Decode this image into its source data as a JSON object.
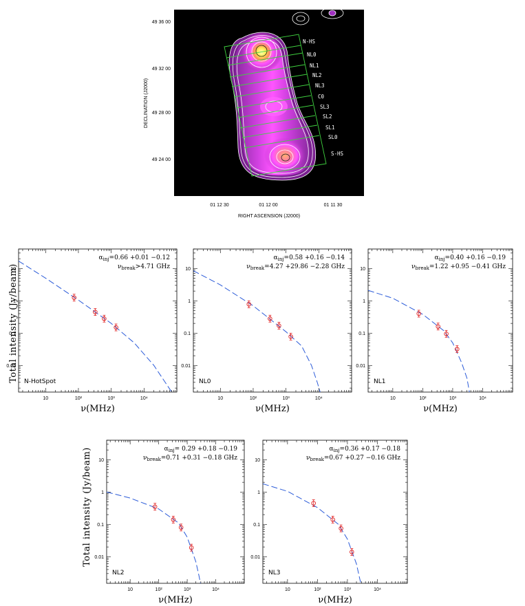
{
  "radio_map": {
    "ra_axis_label": "RIGHT ASCENSION  (J2000)",
    "dec_axis_label": "DECLINATION  (J2000)",
    "ra_ticks": [
      "01 12 30",
      "01 12 00",
      "01 11 30"
    ],
    "dec_ticks": [
      "49 36 00",
      "49 32 00",
      "49 28 00",
      "49 24 00"
    ],
    "region_labels": [
      "N-HS",
      "NL0",
      "NL1",
      "NL2",
      "NL3",
      "C0",
      "SL3",
      "SL2",
      "SL1",
      "SL0",
      "S-HS"
    ],
    "colors": {
      "background": "#000000",
      "grid_boxes": "#3fd23f",
      "contours": "#ffffff",
      "emission_peak": "#ffff55",
      "emission_mid": "#ff44ff"
    }
  },
  "shared": {
    "ylabel": "Total intensity (Jy/beam)",
    "xlabel": "ν(MHz)",
    "colors": {
      "model_line": "#2a5ad8",
      "data_points": "#e02020",
      "axes": "#000000"
    }
  },
  "chart_data": [
    {
      "type": "scatter",
      "panel_label": "N-HotSpot",
      "anno_alpha": "α_inj=0.66 +0.01 −0.12",
      "anno_break": "ν_break>4.71 GHz",
      "xscale": "log",
      "yscale": "log",
      "xlim": [
        1.5,
        100000
      ],
      "ylim": [
        0.0015,
        40
      ],
      "xticks": [
        "10",
        "10²",
        "10³",
        "10⁴"
      ],
      "yticks": [
        "0.01",
        "0.1",
        "1",
        "10"
      ],
      "points": [
        {
          "x": 74,
          "y": 1.25
        },
        {
          "x": 325,
          "y": 0.45
        },
        {
          "x": 610,
          "y": 0.28
        },
        {
          "x": 1400,
          "y": 0.15
        }
      ],
      "model": [
        [
          1.5,
          17
        ],
        [
          10,
          5
        ],
        [
          100,
          1.05
        ],
        [
          1000,
          0.2
        ],
        [
          5000,
          0.05
        ],
        [
          20000,
          0.01
        ],
        [
          50000,
          0.0025
        ],
        [
          70000,
          0.0015
        ]
      ]
    },
    {
      "type": "scatter",
      "panel_label": "NL0",
      "anno_alpha": "α_inj=0.58 +0.16 −0.14",
      "anno_break": "ν_break=4.27 +29.86 −2.28 GHz",
      "xscale": "log",
      "yscale": "log",
      "xlim": [
        1.5,
        100000
      ],
      "ylim": [
        0.0015,
        40
      ],
      "xticks": [
        "10",
        "10²",
        "10³",
        "10⁴"
      ],
      "yticks": [
        "0.01",
        "0.1",
        "1",
        "10"
      ],
      "points": [
        {
          "x": 74,
          "y": 0.78
        },
        {
          "x": 325,
          "y": 0.28
        },
        {
          "x": 610,
          "y": 0.17
        },
        {
          "x": 1400,
          "y": 0.078
        }
      ],
      "model": [
        [
          1.5,
          8.5
        ],
        [
          10,
          3.1
        ],
        [
          100,
          0.7
        ],
        [
          1000,
          0.11
        ],
        [
          3000,
          0.04
        ],
        [
          6000,
          0.01
        ],
        [
          9000,
          0.003
        ],
        [
          11000,
          0.0015
        ]
      ]
    },
    {
      "type": "scatter",
      "panel_label": "NL1",
      "anno_alpha": "α_inj=0.40 +0.16 −0.19",
      "anno_break": "ν_break=1.22 +0.95 −0.41 GHz",
      "xscale": "log",
      "yscale": "log",
      "xlim": [
        1.5,
        100000
      ],
      "ylim": [
        0.0015,
        40
      ],
      "xticks": [
        "10",
        "10²",
        "10³",
        "10⁴"
      ],
      "yticks": [
        "0.01",
        "0.1",
        "1",
        "10"
      ],
      "points": [
        {
          "x": 74,
          "y": 0.4
        },
        {
          "x": 325,
          "y": 0.16
        },
        {
          "x": 610,
          "y": 0.095
        },
        {
          "x": 1400,
          "y": 0.032
        }
      ],
      "model": [
        [
          1.5,
          2.1
        ],
        [
          10,
          1.2
        ],
        [
          100,
          0.38
        ],
        [
          500,
          0.12
        ],
        [
          1000,
          0.05
        ],
        [
          2000,
          0.012
        ],
        [
          3000,
          0.004
        ],
        [
          3600,
          0.0015
        ]
      ]
    },
    {
      "type": "scatter",
      "panel_label": "NL2",
      "anno_alpha": "α_inj= 0.29 +0.18 −0.19",
      "anno_break": "ν_break=0.71 +0.31 −0.18 GHz",
      "xscale": "log",
      "yscale": "log",
      "xlim": [
        1.5,
        100000
      ],
      "ylim": [
        0.0015,
        40
      ],
      "xticks": [
        "10",
        "10²",
        "10³",
        "10⁴"
      ],
      "yticks": [
        "0.01",
        "0.1",
        "1",
        "10"
      ],
      "points": [
        {
          "x": 74,
          "y": 0.35
        },
        {
          "x": 325,
          "y": 0.14
        },
        {
          "x": 610,
          "y": 0.08
        },
        {
          "x": 1400,
          "y": 0.019
        }
      ],
      "model": [
        [
          1.5,
          1.0
        ],
        [
          10,
          0.65
        ],
        [
          100,
          0.3
        ],
        [
          500,
          0.11
        ],
        [
          1000,
          0.04
        ],
        [
          2000,
          0.007
        ],
        [
          2600,
          0.0025
        ],
        [
          2900,
          0.0015
        ]
      ]
    },
    {
      "type": "scatter",
      "panel_label": "NL3",
      "anno_alpha": "α_inj=0.36 +0.17 −0.18",
      "anno_break": "ν_break=0.67 +0.27 −0.16 GHz",
      "xscale": "log",
      "yscale": "log",
      "xlim": [
        1.5,
        100000
      ],
      "ylim": [
        0.0015,
        40
      ],
      "xticks": [
        "10",
        "10²",
        "10³",
        "10⁴"
      ],
      "yticks": [
        "0.01",
        "0.1",
        "1",
        "10"
      ],
      "points": [
        {
          "x": 74,
          "y": 0.45
        },
        {
          "x": 325,
          "y": 0.14
        },
        {
          "x": 610,
          "y": 0.075
        },
        {
          "x": 1400,
          "y": 0.014
        }
      ],
      "model": [
        [
          1.5,
          1.8
        ],
        [
          10,
          1.05
        ],
        [
          100,
          0.33
        ],
        [
          500,
          0.1
        ],
        [
          1000,
          0.035
        ],
        [
          2000,
          0.006
        ],
        [
          2600,
          0.002
        ],
        [
          2800,
          0.0015
        ]
      ]
    }
  ]
}
